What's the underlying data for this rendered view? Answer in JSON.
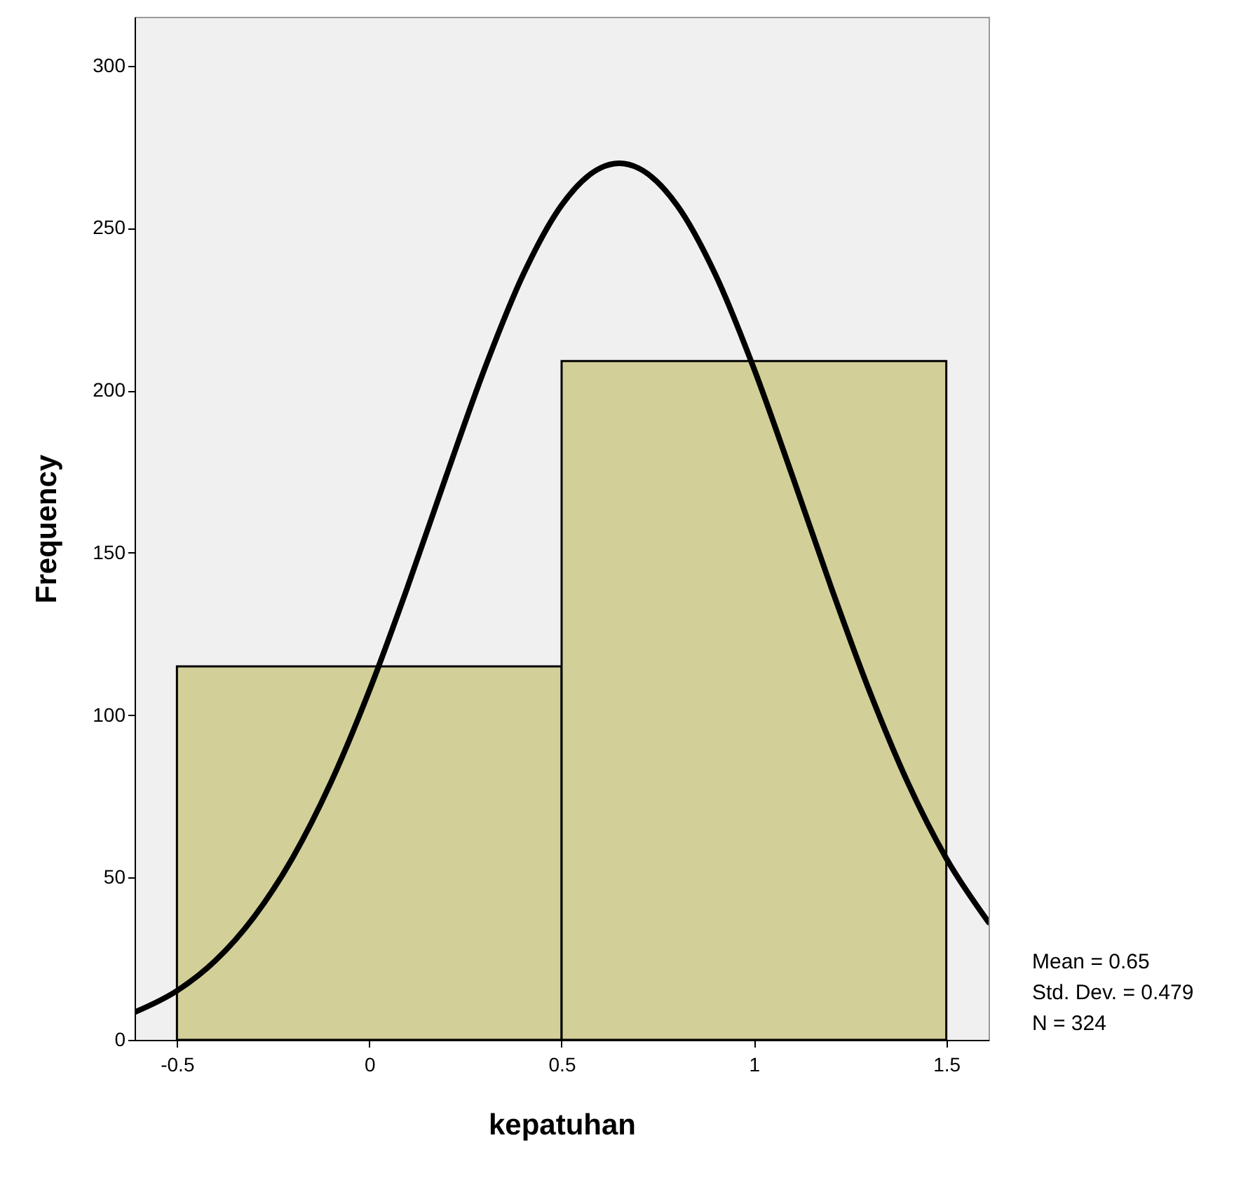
{
  "chart_data": {
    "type": "histogram",
    "xlabel": "kepatuhan",
    "ylabel": "Frequency",
    "bins": [
      -0.5,
      0.5,
      1.5
    ],
    "values": [
      115,
      209
    ],
    "color": "#d3cf99",
    "series": [
      {
        "type": "line",
        "color": "#000000",
        "x": [
          -0.61,
          -0.5,
          -0.4,
          -0.3,
          -0.2,
          -0.1,
          0,
          0.1,
          0.2,
          0.3,
          0.4,
          0.5,
          0.6,
          0.65,
          0.7,
          0.8,
          0.9,
          1.0,
          1.1,
          1.2,
          1.3,
          1.4,
          1.5,
          1.61
        ],
        "values": [
          8.5,
          15.1,
          24.4,
          37.8,
          55.9,
          79.2,
          107.5,
          139.6,
          173.6,
          206.7,
          235.6,
          257.0,
          268.4,
          269.9,
          268.4,
          257.0,
          235.6,
          206.7,
          173.6,
          139.6,
          107.5,
          79.2,
          55.9,
          36.2
        ]
      }
    ],
    "xlim": [
      -0.61,
      1.61
    ],
    "xticks": [
      -0.5,
      0,
      0.5,
      1,
      1.5
    ],
    "ylim": [
      0,
      315
    ],
    "yticks": [
      0,
      50,
      100,
      150,
      200,
      250,
      300
    ],
    "grid": false,
    "annotations": [
      "Mean = 0.65",
      "Std. Dev. = 0.479",
      "N = 324"
    ]
  }
}
